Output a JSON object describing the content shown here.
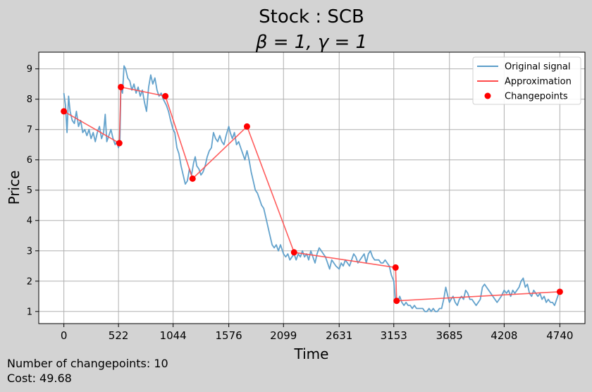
{
  "chart_data": {
    "type": "line",
    "title": "Stock : SCB",
    "subtitle": "β = 1, γ = 1",
    "xlabel": "Time",
    "ylabel": "Price",
    "xlim": [
      -240,
      4980
    ],
    "ylim": [
      0.6,
      9.55
    ],
    "x_ticks": [
      0,
      522,
      1044,
      1576,
      2099,
      2631,
      3153,
      3685,
      4208,
      4740
    ],
    "y_ticks": [
      1,
      2,
      3,
      4,
      5,
      6,
      7,
      8,
      9
    ],
    "grid": true,
    "legend_position": "upper right",
    "series": [
      {
        "name": "Original signal",
        "kind": "line",
        "color": "#5b9dc9",
        "points": [
          [
            0,
            8.2
          ],
          [
            15,
            7.8
          ],
          [
            30,
            6.9
          ],
          [
            45,
            8.1
          ],
          [
            60,
            7.6
          ],
          [
            80,
            7.3
          ],
          [
            100,
            7.2
          ],
          [
            120,
            7.6
          ],
          [
            140,
            7.1
          ],
          [
            160,
            7.3
          ],
          [
            180,
            6.9
          ],
          [
            200,
            7.0
          ],
          [
            220,
            6.8
          ],
          [
            240,
            7.0
          ],
          [
            260,
            6.7
          ],
          [
            280,
            6.9
          ],
          [
            300,
            6.6
          ],
          [
            320,
            6.9
          ],
          [
            340,
            7.1
          ],
          [
            360,
            6.7
          ],
          [
            380,
            6.9
          ],
          [
            395,
            7.5
          ],
          [
            410,
            6.6
          ],
          [
            430,
            6.8
          ],
          [
            450,
            7.0
          ],
          [
            470,
            6.7
          ],
          [
            490,
            6.5
          ],
          [
            505,
            6.6
          ],
          [
            522,
            6.4
          ],
          [
            535,
            6.6
          ],
          [
            545,
            8.4
          ],
          [
            560,
            8.2
          ],
          [
            575,
            9.1
          ],
          [
            590,
            9.0
          ],
          [
            610,
            8.7
          ],
          [
            630,
            8.6
          ],
          [
            650,
            8.3
          ],
          [
            670,
            8.5
          ],
          [
            690,
            8.2
          ],
          [
            710,
            8.4
          ],
          [
            730,
            8.1
          ],
          [
            750,
            8.3
          ],
          [
            770,
            7.9
          ],
          [
            790,
            7.6
          ],
          [
            810,
            8.4
          ],
          [
            830,
            8.8
          ],
          [
            850,
            8.5
          ],
          [
            870,
            8.7
          ],
          [
            890,
            8.3
          ],
          [
            910,
            8.1
          ],
          [
            930,
            8.2
          ],
          [
            950,
            8.0
          ],
          [
            980,
            7.8
          ],
          [
            1000,
            7.6
          ],
          [
            1020,
            7.3
          ],
          [
            1044,
            7.0
          ],
          [
            1060,
            6.9
          ],
          [
            1080,
            6.4
          ],
          [
            1100,
            6.2
          ],
          [
            1120,
            5.8
          ],
          [
            1140,
            5.5
          ],
          [
            1160,
            5.2
          ],
          [
            1180,
            5.3
          ],
          [
            1200,
            5.7
          ],
          [
            1220,
            5.5
          ],
          [
            1240,
            5.9
          ],
          [
            1255,
            6.1
          ],
          [
            1270,
            5.8
          ],
          [
            1290,
            5.7
          ],
          [
            1310,
            5.5
          ],
          [
            1330,
            5.6
          ],
          [
            1350,
            5.8
          ],
          [
            1370,
            6.1
          ],
          [
            1390,
            6.3
          ],
          [
            1410,
            6.4
          ],
          [
            1430,
            6.9
          ],
          [
            1450,
            6.7
          ],
          [
            1470,
            6.6
          ],
          [
            1490,
            6.8
          ],
          [
            1510,
            6.6
          ],
          [
            1530,
            6.5
          ],
          [
            1550,
            6.8
          ],
          [
            1576,
            7.1
          ],
          [
            1590,
            6.9
          ],
          [
            1610,
            6.7
          ],
          [
            1630,
            6.9
          ],
          [
            1650,
            6.5
          ],
          [
            1670,
            6.6
          ],
          [
            1690,
            6.4
          ],
          [
            1710,
            6.2
          ],
          [
            1730,
            6.0
          ],
          [
            1750,
            6.3
          ],
          [
            1770,
            6.0
          ],
          [
            1790,
            5.6
          ],
          [
            1810,
            5.3
          ],
          [
            1830,
            5.0
          ],
          [
            1850,
            4.9
          ],
          [
            1870,
            4.7
          ],
          [
            1890,
            4.5
          ],
          [
            1910,
            4.4
          ],
          [
            1930,
            4.1
          ],
          [
            1950,
            3.8
          ],
          [
            1970,
            3.5
          ],
          [
            1990,
            3.2
          ],
          [
            2010,
            3.1
          ],
          [
            2030,
            3.2
          ],
          [
            2050,
            3.0
          ],
          [
            2070,
            3.2
          ],
          [
            2099,
            2.9
          ],
          [
            2120,
            2.8
          ],
          [
            2140,
            2.9
          ],
          [
            2160,
            2.7
          ],
          [
            2180,
            2.8
          ],
          [
            2200,
            2.9
          ],
          [
            2220,
            2.7
          ],
          [
            2240,
            2.9
          ],
          [
            2260,
            2.8
          ],
          [
            2280,
            3.0
          ],
          [
            2300,
            2.8
          ],
          [
            2320,
            2.9
          ],
          [
            2340,
            2.7
          ],
          [
            2360,
            3.0
          ],
          [
            2380,
            2.8
          ],
          [
            2400,
            2.6
          ],
          [
            2420,
            2.9
          ],
          [
            2440,
            3.1
          ],
          [
            2460,
            3.0
          ],
          [
            2480,
            2.9
          ],
          [
            2500,
            2.8
          ],
          [
            2520,
            2.6
          ],
          [
            2540,
            2.4
          ],
          [
            2560,
            2.7
          ],
          [
            2580,
            2.6
          ],
          [
            2600,
            2.5
          ],
          [
            2631,
            2.4
          ],
          [
            2650,
            2.6
          ],
          [
            2670,
            2.5
          ],
          [
            2690,
            2.7
          ],
          [
            2710,
            2.6
          ],
          [
            2730,
            2.5
          ],
          [
            2750,
            2.7
          ],
          [
            2770,
            2.9
          ],
          [
            2790,
            2.8
          ],
          [
            2810,
            2.6
          ],
          [
            2830,
            2.7
          ],
          [
            2850,
            2.8
          ],
          [
            2870,
            2.9
          ],
          [
            2890,
            2.6
          ],
          [
            2910,
            2.9
          ],
          [
            2930,
            3.0
          ],
          [
            2950,
            2.8
          ],
          [
            2970,
            2.7
          ],
          [
            2990,
            2.7
          ],
          [
            3010,
            2.7
          ],
          [
            3030,
            2.6
          ],
          [
            3050,
            2.6
          ],
          [
            3070,
            2.7
          ],
          [
            3090,
            2.6
          ],
          [
            3110,
            2.5
          ],
          [
            3130,
            2.2
          ],
          [
            3153,
            2.0
          ],
          [
            3170,
            1.3
          ],
          [
            3190,
            1.3
          ],
          [
            3210,
            1.5
          ],
          [
            3230,
            1.3
          ],
          [
            3250,
            1.2
          ],
          [
            3270,
            1.3
          ],
          [
            3290,
            1.2
          ],
          [
            3310,
            1.2
          ],
          [
            3330,
            1.1
          ],
          [
            3350,
            1.2
          ],
          [
            3370,
            1.1
          ],
          [
            3390,
            1.1
          ],
          [
            3410,
            1.1
          ],
          [
            3430,
            1.1
          ],
          [
            3450,
            1.0
          ],
          [
            3470,
            1.0
          ],
          [
            3490,
            1.1
          ],
          [
            3510,
            1.0
          ],
          [
            3530,
            1.1
          ],
          [
            3550,
            1.0
          ],
          [
            3570,
            1.0
          ],
          [
            3590,
            1.1
          ],
          [
            3610,
            1.1
          ],
          [
            3630,
            1.4
          ],
          [
            3650,
            1.8
          ],
          [
            3670,
            1.5
          ],
          [
            3685,
            1.3
          ],
          [
            3700,
            1.4
          ],
          [
            3720,
            1.5
          ],
          [
            3740,
            1.3
          ],
          [
            3760,
            1.2
          ],
          [
            3780,
            1.4
          ],
          [
            3800,
            1.5
          ],
          [
            3820,
            1.4
          ],
          [
            3840,
            1.7
          ],
          [
            3860,
            1.6
          ],
          [
            3880,
            1.4
          ],
          [
            3900,
            1.4
          ],
          [
            3920,
            1.3
          ],
          [
            3940,
            1.2
          ],
          [
            3960,
            1.3
          ],
          [
            3980,
            1.4
          ],
          [
            4000,
            1.8
          ],
          [
            4020,
            1.9
          ],
          [
            4040,
            1.8
          ],
          [
            4060,
            1.7
          ],
          [
            4080,
            1.6
          ],
          [
            4100,
            1.5
          ],
          [
            4120,
            1.4
          ],
          [
            4140,
            1.3
          ],
          [
            4160,
            1.4
          ],
          [
            4180,
            1.5
          ],
          [
            4208,
            1.7
          ],
          [
            4230,
            1.6
          ],
          [
            4250,
            1.7
          ],
          [
            4270,
            1.5
          ],
          [
            4290,
            1.7
          ],
          [
            4310,
            1.6
          ],
          [
            4330,
            1.7
          ],
          [
            4350,
            1.8
          ],
          [
            4370,
            2.0
          ],
          [
            4390,
            2.1
          ],
          [
            4410,
            1.8
          ],
          [
            4430,
            1.9
          ],
          [
            4450,
            1.6
          ],
          [
            4470,
            1.5
          ],
          [
            4490,
            1.7
          ],
          [
            4510,
            1.6
          ],
          [
            4530,
            1.5
          ],
          [
            4550,
            1.6
          ],
          [
            4570,
            1.4
          ],
          [
            4590,
            1.5
          ],
          [
            4610,
            1.3
          ],
          [
            4630,
            1.4
          ],
          [
            4650,
            1.3
          ],
          [
            4670,
            1.3
          ],
          [
            4690,
            1.2
          ],
          [
            4710,
            1.4
          ],
          [
            4730,
            1.6
          ],
          [
            4740,
            1.7
          ]
        ]
      },
      {
        "name": "Approximation",
        "kind": "line",
        "color": "#ff4a4a",
        "points": [
          [
            0,
            7.6
          ],
          [
            530,
            6.55
          ],
          [
            545,
            8.4
          ],
          [
            970,
            8.1
          ],
          [
            1230,
            5.38
          ],
          [
            1750,
            7.1
          ],
          [
            2200,
            2.95
          ],
          [
            3170,
            2.45
          ],
          [
            3180,
            1.35
          ],
          [
            4740,
            1.65
          ]
        ]
      },
      {
        "name": "Changepoints",
        "kind": "scatter",
        "color": "#ff0000",
        "points": [
          [
            0,
            7.6
          ],
          [
            530,
            6.55
          ],
          [
            545,
            8.4
          ],
          [
            970,
            8.1
          ],
          [
            1230,
            5.38
          ],
          [
            1750,
            7.1
          ],
          [
            2200,
            2.95
          ],
          [
            3170,
            2.45
          ],
          [
            3180,
            1.35
          ],
          [
            4740,
            1.65
          ]
        ]
      }
    ]
  },
  "footer": {
    "changepoints_text": "Number of changepoints: 10",
    "cost_text": "Cost: 49.68"
  }
}
